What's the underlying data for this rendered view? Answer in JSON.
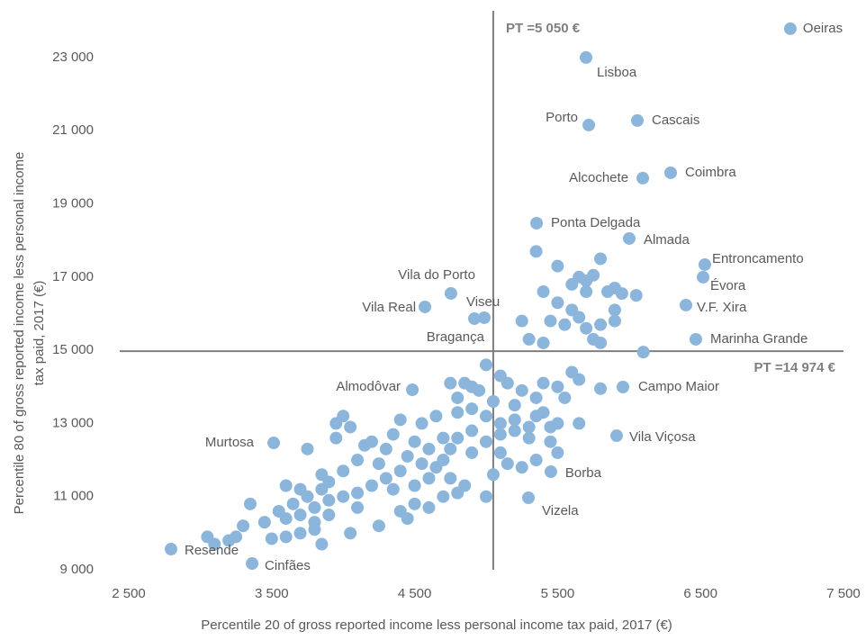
{
  "chart_data": {
    "type": "scatter",
    "x_label": "Percentile 20 of gross reported income less personal income tax paid, 2017 (€)",
    "y_label": [
      "Percentile 80 of gross reported income less personal income",
      "tax paid, 2017 (€)"
    ],
    "color": "#8cb5dc",
    "xlim": [
      2500,
      7500
    ],
    "ylim": [
      9000,
      24000
    ],
    "xticks": [
      {
        "value": 2500,
        "label": "2 500"
      },
      {
        "value": 3500,
        "label": "3 500"
      },
      {
        "value": 4500,
        "label": "4 500"
      },
      {
        "value": 5500,
        "label": "5 500"
      },
      {
        "value": 6500,
        "label": "6 500"
      },
      {
        "value": 7500,
        "label": "7 500"
      }
    ],
    "yticks": [
      {
        "value": 9000,
        "label": "9 000"
      },
      {
        "value": 11000,
        "label": "11 000"
      },
      {
        "value": 13000,
        "label": "13 000"
      },
      {
        "value": 15000,
        "label": "15 000"
      },
      {
        "value": 17000,
        "label": "17 000"
      },
      {
        "value": 19000,
        "label": "19 000"
      },
      {
        "value": 21000,
        "label": "21 000"
      },
      {
        "value": 23000,
        "label": "23 000"
      }
    ],
    "reference_lines": [
      {
        "axis": "x",
        "value": 5050,
        "label": "PT =5 050 €"
      },
      {
        "axis": "y",
        "value": 14974,
        "label": "PT =14 974 €"
      }
    ],
    "labels": [
      "Oeiras",
      "Lisboa",
      "Porto",
      "Cascais",
      "Alcochete",
      "Coimbra",
      "Ponta Delgada",
      "Almada",
      "Entroncamento",
      "Évora",
      "V.F. Xira",
      "Marinha Grande",
      "Vila do Porto",
      "Vila Real",
      "Viseu",
      "Bragança",
      "Almodôvar",
      "Campo Maior",
      "Vila Viçosa",
      "Borba",
      "Vizela",
      "Murtosa",
      "Resende",
      "Cinfães"
    ],
    "x": [
      7128,
      5699,
      5718,
      6058,
      6096,
      6291,
      5353,
      6001,
      6530,
      6518,
      6398,
      6467,
      4754,
      4572,
      4918,
      4987,
      4484,
      5957,
      5913,
      5453,
      5296,
      3514,
      2796,
      3363,
      5350,
      5500,
      5650,
      5700,
      5800,
      5750,
      5900,
      6050,
      5950,
      5600,
      5700,
      5850,
      5400,
      5500,
      5600,
      5650,
      5550,
      5800,
      5900,
      5450,
      5250,
      5400,
      5750,
      5800,
      6100,
      5300,
      5900,
      5700,
      5000,
      5100,
      5150,
      5250,
      5400,
      5500,
      5600,
      5650,
      5800,
      5550,
      5350,
      5200,
      5050,
      4900,
      4800,
      4750,
      4850,
      4950,
      4900,
      5000,
      5100,
      5200,
      5300,
      5400,
      5500,
      5650,
      5300,
      5450,
      5500,
      5350,
      5250,
      5100,
      5000,
      4900,
      4800,
      4750,
      5050,
      5150,
      5350,
      5450,
      5200,
      5100,
      5000,
      4400,
      4550,
      4650,
      4800,
      4350,
      4500,
      4600,
      4700,
      4300,
      4200,
      4450,
      4550,
      4650,
      4750,
      4850,
      4400,
      4300,
      4200,
      4100,
      4000,
      3900,
      3800,
      3700,
      3600,
      3900,
      4000,
      4100,
      3850,
      3750,
      3650,
      3550,
      3450,
      3300,
      3250,
      3500,
      3600,
      3700,
      3800,
      3850,
      4050,
      4250,
      4400,
      4500,
      4600,
      4700,
      4800,
      3950,
      4050,
      4150,
      3750,
      3950,
      4000,
      3850,
      3700,
      3800,
      3350,
      3200,
      3100,
      3050,
      4250,
      4350,
      4500,
      4600,
      4450,
      4700,
      4900,
      3600,
      3900,
      4100
    ],
    "y": [
      23787,
      23000,
      21155,
      21278,
      19703,
      19850,
      18472,
      18054,
      17340,
      16996,
      16233,
      15298,
      16553,
      16184,
      15864,
      15889,
      13920,
      13994,
      12665,
      11681,
      10968,
      12468,
      9565,
      9171,
      17700,
      17300,
      17000,
      16900,
      17500,
      17050,
      16700,
      16500,
      16550,
      16800,
      16600,
      16600,
      16600,
      16300,
      16100,
      15900,
      15700,
      15700,
      16100,
      15800,
      15800,
      15200,
      15300,
      15200,
      14950,
      15300,
      15800,
      15600,
      14600,
      14300,
      14100,
      13900,
      14100,
      14000,
      14400,
      14200,
      13950,
      13700,
      13700,
      13500,
      13600,
      14000,
      13700,
      14100,
      14100,
      13900,
      13400,
      13200,
      13000,
      12800,
      12900,
      13300,
      13000,
      13000,
      12600,
      12500,
      12200,
      12000,
      11800,
      12200,
      12500,
      12800,
      12600,
      12300,
      11600,
      11900,
      13200,
      12900,
      13100,
      12700,
      11000,
      13100,
      13000,
      13200,
      13300,
      12700,
      12500,
      12300,
      12600,
      12300,
      12500,
      12100,
      11900,
      11800,
      11500,
      11300,
      11700,
      11500,
      11300,
      11100,
      11000,
      10900,
      10700,
      10500,
      10400,
      11400,
      11700,
      12000,
      11200,
      11000,
      10800,
      10600,
      10300,
      10200,
      9900,
      9850,
      9900,
      10000,
      10100,
      9700,
      10000,
      10200,
      10600,
      10800,
      10700,
      11000,
      11100,
      12600,
      12900,
      12400,
      12300,
      13000,
      13200,
      11600,
      11200,
      10300,
      10800,
      9800,
      9700,
      9900,
      11900,
      11200,
      11300,
      11500,
      10400,
      12000,
      12200,
      11300,
      10500,
      10700
    ]
  }
}
